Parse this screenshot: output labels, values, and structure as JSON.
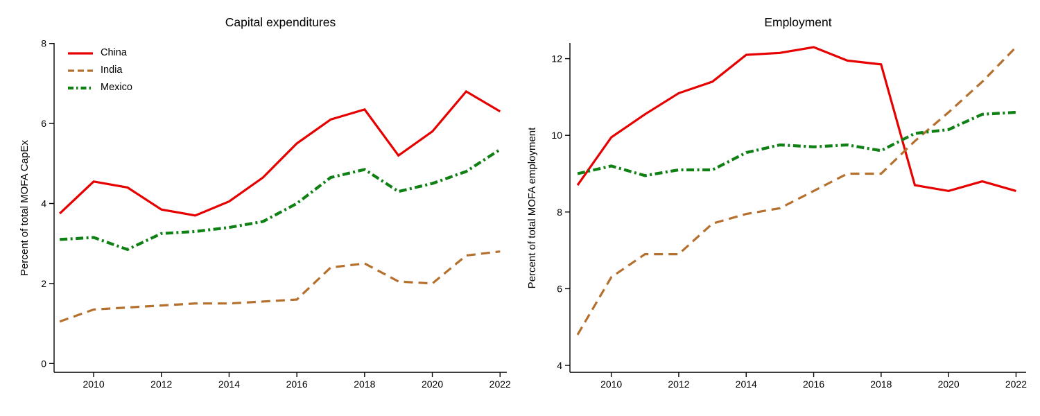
{
  "page": {
    "background": "#ffffff"
  },
  "legend": {
    "position": "top-left-of-first-chart",
    "items": [
      "China",
      "India",
      "Mexico"
    ]
  },
  "chart_data": [
    {
      "type": "line",
      "title": "Capital expenditures",
      "xlabel": "",
      "ylabel": "Percent of total MOFA CapEx",
      "x": [
        2009,
        2010,
        2011,
        2012,
        2013,
        2014,
        2015,
        2016,
        2017,
        2018,
        2019,
        2020,
        2021,
        2022
      ],
      "x_ticks": [
        2010,
        2012,
        2014,
        2016,
        2018,
        2020,
        2022
      ],
      "y_ticks": [
        0,
        2,
        4,
        6,
        8
      ],
      "ylim": [
        0,
        8.2
      ],
      "grid": false,
      "legend_position": "top-left inside plot",
      "series": [
        {
          "name": "China",
          "color": "#e60000",
          "dash": "solid",
          "width": 3.2,
          "values": [
            3.75,
            4.55,
            4.4,
            3.85,
            3.7,
            4.05,
            4.65,
            5.5,
            6.1,
            6.35,
            5.2,
            5.8,
            6.8,
            6.3
          ]
        },
        {
          "name": "India",
          "color": "#b5702d",
          "dash": "dash",
          "width": 3.2,
          "values": [
            1.05,
            1.35,
            1.4,
            1.45,
            1.5,
            1.5,
            1.55,
            1.6,
            2.4,
            2.5,
            2.05,
            2.0,
            2.7,
            2.8
          ]
        },
        {
          "name": "Mexico",
          "color": "#0f8014",
          "dash": "dash-dot",
          "width": 4.2,
          "values": [
            3.1,
            3.15,
            2.85,
            3.25,
            3.3,
            3.4,
            3.55,
            4.0,
            4.65,
            4.85,
            4.3,
            4.5,
            4.8,
            5.35
          ]
        }
      ]
    },
    {
      "type": "line",
      "title": "Employment",
      "xlabel": "",
      "ylabel": "Percent of total MOFA employment",
      "x": [
        2009,
        2010,
        2011,
        2012,
        2013,
        2014,
        2015,
        2016,
        2017,
        2018,
        2019,
        2020,
        2021,
        2022
      ],
      "x_ticks": [
        2010,
        2012,
        2014,
        2016,
        2018,
        2020,
        2022
      ],
      "y_ticks": [
        4,
        6,
        8,
        10,
        12
      ],
      "ylim": [
        4,
        12.45
      ],
      "grid": false,
      "legend_position": "none",
      "series": [
        {
          "name": "China",
          "color": "#e60000",
          "dash": "solid",
          "width": 3.2,
          "values": [
            8.7,
            9.95,
            10.55,
            11.1,
            11.4,
            12.1,
            12.15,
            12.3,
            11.95,
            11.85,
            8.7,
            8.55,
            8.8,
            8.55
          ]
        },
        {
          "name": "India",
          "color": "#b5702d",
          "dash": "dash",
          "width": 3.2,
          "values": [
            4.8,
            6.3,
            6.9,
            6.9,
            7.7,
            7.95,
            8.1,
            8.55,
            9.0,
            9.0,
            9.85,
            10.6,
            11.4,
            12.3
          ]
        },
        {
          "name": "Mexico",
          "color": "#0f8014",
          "dash": "dash-dot",
          "width": 4.2,
          "values": [
            9.0,
            9.2,
            8.95,
            9.1,
            9.1,
            9.55,
            9.75,
            9.7,
            9.75,
            9.6,
            10.05,
            10.15,
            10.55,
            10.6
          ]
        }
      ]
    }
  ]
}
